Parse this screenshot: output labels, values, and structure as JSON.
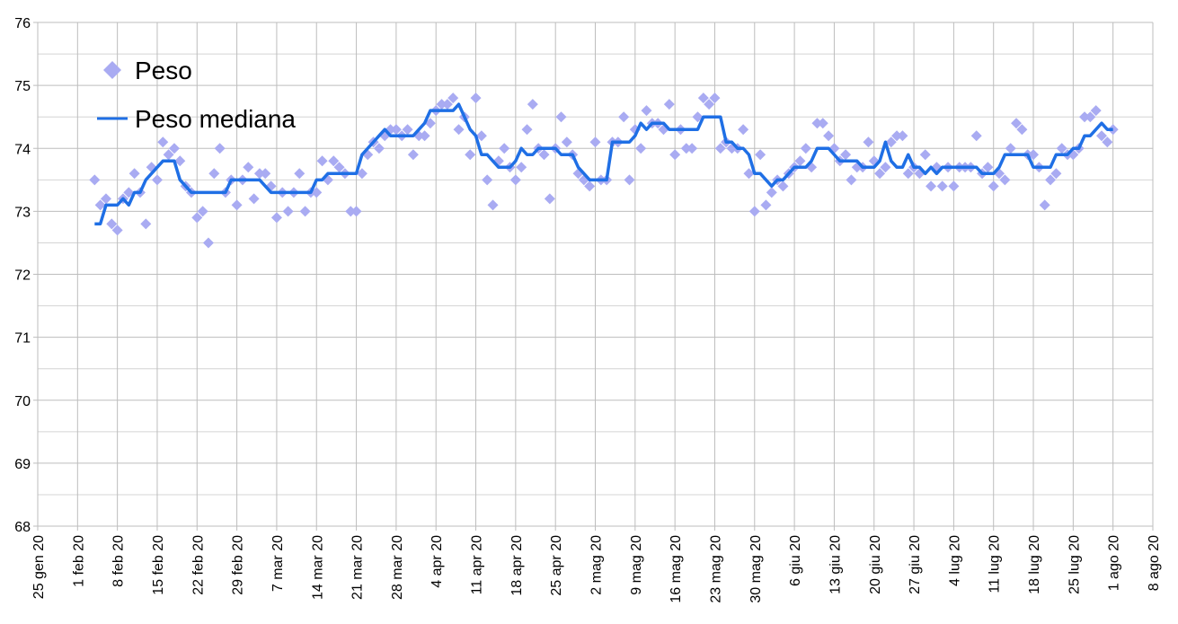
{
  "chart_data": {
    "type": "scatter_line",
    "x": [
      "2020-02-04",
      "2020-02-05",
      "2020-02-06",
      "2020-02-07",
      "2020-02-08",
      "2020-02-09",
      "2020-02-10",
      "2020-02-11",
      "2020-02-12",
      "2020-02-13",
      "2020-02-14",
      "2020-02-15",
      "2020-02-16",
      "2020-02-17",
      "2020-02-18",
      "2020-02-19",
      "2020-02-20",
      "2020-02-21",
      "2020-02-22",
      "2020-02-23",
      "2020-02-24",
      "2020-02-25",
      "2020-02-26",
      "2020-02-27",
      "2020-02-28",
      "2020-02-29",
      "2020-03-01",
      "2020-03-02",
      "2020-03-03",
      "2020-03-04",
      "2020-03-05",
      "2020-03-06",
      "2020-03-07",
      "2020-03-08",
      "2020-03-09",
      "2020-03-10",
      "2020-03-11",
      "2020-03-12",
      "2020-03-13",
      "2020-03-14",
      "2020-03-15",
      "2020-03-16",
      "2020-03-17",
      "2020-03-18",
      "2020-03-19",
      "2020-03-20",
      "2020-03-21",
      "2020-03-22",
      "2020-03-23",
      "2020-03-24",
      "2020-03-25",
      "2020-03-26",
      "2020-03-27",
      "2020-03-28",
      "2020-03-29",
      "2020-03-30",
      "2020-03-31",
      "2020-04-01",
      "2020-04-02",
      "2020-04-03",
      "2020-04-04",
      "2020-04-05",
      "2020-04-06",
      "2020-04-07",
      "2020-04-08",
      "2020-04-09",
      "2020-04-10",
      "2020-04-11",
      "2020-04-12",
      "2020-04-13",
      "2020-04-14",
      "2020-04-15",
      "2020-04-16",
      "2020-04-17",
      "2020-04-18",
      "2020-04-19",
      "2020-04-20",
      "2020-04-21",
      "2020-04-22",
      "2020-04-23",
      "2020-04-24",
      "2020-04-25",
      "2020-04-26",
      "2020-04-27",
      "2020-04-28",
      "2020-04-29",
      "2020-04-30",
      "2020-05-01",
      "2020-05-02",
      "2020-05-03",
      "2020-05-04",
      "2020-05-05",
      "2020-05-06",
      "2020-05-07",
      "2020-05-08",
      "2020-05-09",
      "2020-05-10",
      "2020-05-11",
      "2020-05-12",
      "2020-05-13",
      "2020-05-14",
      "2020-05-15",
      "2020-05-16",
      "2020-05-17",
      "2020-05-18",
      "2020-05-19",
      "2020-05-20",
      "2020-05-21",
      "2020-05-22",
      "2020-05-23",
      "2020-05-24",
      "2020-05-25",
      "2020-05-26",
      "2020-05-27",
      "2020-05-28",
      "2020-05-29",
      "2020-05-30",
      "2020-05-31",
      "2020-06-01",
      "2020-06-02",
      "2020-06-03",
      "2020-06-04",
      "2020-06-05",
      "2020-06-06",
      "2020-06-07",
      "2020-06-08",
      "2020-06-09",
      "2020-06-10",
      "2020-06-11",
      "2020-06-12",
      "2020-06-13",
      "2020-06-14",
      "2020-06-15",
      "2020-06-16",
      "2020-06-17",
      "2020-06-18",
      "2020-06-19",
      "2020-06-20",
      "2020-06-21",
      "2020-06-22",
      "2020-06-23",
      "2020-06-24",
      "2020-06-25",
      "2020-06-26",
      "2020-06-27",
      "2020-06-28",
      "2020-06-29",
      "2020-06-30",
      "2020-07-01",
      "2020-07-02",
      "2020-07-03",
      "2020-07-04",
      "2020-07-05",
      "2020-07-06",
      "2020-07-07",
      "2020-07-08",
      "2020-07-09",
      "2020-07-10",
      "2020-07-11",
      "2020-07-12",
      "2020-07-13",
      "2020-07-14",
      "2020-07-15",
      "2020-07-16",
      "2020-07-17",
      "2020-07-18",
      "2020-07-19",
      "2020-07-20",
      "2020-07-21",
      "2020-07-22",
      "2020-07-23",
      "2020-07-24",
      "2020-07-25",
      "2020-07-26",
      "2020-07-27",
      "2020-07-28",
      "2020-07-29",
      "2020-07-30",
      "2020-07-31",
      "2020-08-01"
    ],
    "series": [
      {
        "name": "Peso",
        "color": "#a9abf2",
        "marker": "diamond",
        "values": [
          73.5,
          73.1,
          73.2,
          72.8,
          72.7,
          73.2,
          73.3,
          73.6,
          73.3,
          72.8,
          73.7,
          73.5,
          74.1,
          73.9,
          74.0,
          73.8,
          73.4,
          73.3,
          72.9,
          73.0,
          72.5,
          73.6,
          74.0,
          73.3,
          73.5,
          73.1,
          73.5,
          73.7,
          73.2,
          73.6,
          73.6,
          73.4,
          72.9,
          73.3,
          73.0,
          73.3,
          73.6,
          73.0,
          73.3,
          73.3,
          73.8,
          73.5,
          73.8,
          73.7,
          73.6,
          73.0,
          73.0,
          73.6,
          73.9,
          74.1,
          74.0,
          74.2,
          74.3,
          74.3,
          74.2,
          74.3,
          73.9,
          74.2,
          74.2,
          74.4,
          74.6,
          74.7,
          74.7,
          74.8,
          74.3,
          74.5,
          73.9,
          74.8,
          74.2,
          73.5,
          73.1,
          73.8,
          74.0,
          73.7,
          73.5,
          73.7,
          74.3,
          74.7,
          74.0,
          73.9,
          73.2,
          74.0,
          74.5,
          74.1,
          73.9,
          73.6,
          73.5,
          73.4,
          74.1,
          73.5,
          73.5,
          74.1,
          74.1,
          74.5,
          73.5,
          74.3,
          74.0,
          74.6,
          74.4,
          74.4,
          74.3,
          74.7,
          73.9,
          74.3,
          74.0,
          74.0,
          74.5,
          74.8,
          74.7,
          74.8,
          74.0,
          74.1,
          74.0,
          74.0,
          74.3,
          73.6,
          73.0,
          73.9,
          73.1,
          73.3,
          73.5,
          73.4,
          73.6,
          73.7,
          73.8,
          74.0,
          73.7,
          74.4,
          74.4,
          74.2,
          74.0,
          73.8,
          73.9,
          73.5,
          73.7,
          73.7,
          74.1,
          73.8,
          73.6,
          73.7,
          74.1,
          74.2,
          74.2,
          73.6,
          73.7,
          73.6,
          73.9,
          73.4,
          73.7,
          73.4,
          73.7,
          73.4,
          73.7,
          73.7,
          73.7,
          74.2,
          73.6,
          73.7,
          73.4,
          73.6,
          73.5,
          74.0,
          74.4,
          74.3,
          73.9,
          73.9,
          73.7,
          73.1,
          73.5,
          73.6,
          74.0,
          73.9,
          73.9,
          74.0,
          74.5,
          74.5,
          74.6,
          74.2,
          74.1,
          74.3
        ]
      },
      {
        "name": "Peso mediana",
        "color": "#1f6fe5",
        "marker": "line",
        "values": [
          72.8,
          72.8,
          73.1,
          73.1,
          73.1,
          73.2,
          73.1,
          73.3,
          73.3,
          73.5,
          73.6,
          73.7,
          73.8,
          73.8,
          73.8,
          73.5,
          73.4,
          73.3,
          73.3,
          73.3,
          73.3,
          73.3,
          73.3,
          73.3,
          73.5,
          73.5,
          73.5,
          73.5,
          73.5,
          73.5,
          73.4,
          73.3,
          73.3,
          73.3,
          73.3,
          73.3,
          73.3,
          73.3,
          73.3,
          73.5,
          73.5,
          73.6,
          73.6,
          73.6,
          73.6,
          73.6,
          73.6,
          73.9,
          74.0,
          74.1,
          74.2,
          74.3,
          74.2,
          74.2,
          74.2,
          74.2,
          74.2,
          74.3,
          74.4,
          74.6,
          74.6,
          74.6,
          74.6,
          74.6,
          74.7,
          74.5,
          74.3,
          74.2,
          73.9,
          73.9,
          73.8,
          73.7,
          73.7,
          73.7,
          73.8,
          74.0,
          73.9,
          73.9,
          74.0,
          74.0,
          74.0,
          74.0,
          73.9,
          73.9,
          73.9,
          73.7,
          73.6,
          73.5,
          73.5,
          73.5,
          73.5,
          74.1,
          74.1,
          74.1,
          74.1,
          74.2,
          74.4,
          74.3,
          74.4,
          74.4,
          74.4,
          74.3,
          74.3,
          74.3,
          74.3,
          74.3,
          74.3,
          74.5,
          74.5,
          74.5,
          74.5,
          74.1,
          74.1,
          74.0,
          74.0,
          73.9,
          73.6,
          73.6,
          73.5,
          73.4,
          73.5,
          73.5,
          73.6,
          73.7,
          73.7,
          73.7,
          73.8,
          74.0,
          74.0,
          74.0,
          73.9,
          73.8,
          73.8,
          73.8,
          73.8,
          73.7,
          73.7,
          73.7,
          73.8,
          74.1,
          73.8,
          73.7,
          73.7,
          73.9,
          73.7,
          73.7,
          73.6,
          73.7,
          73.6,
          73.7,
          73.7,
          73.7,
          73.7,
          73.7,
          73.7,
          73.7,
          73.6,
          73.6,
          73.6,
          73.7,
          73.9,
          73.9,
          73.9,
          73.9,
          73.9,
          73.7,
          73.7,
          73.7,
          73.7,
          73.9,
          73.9,
          73.9,
          74.0,
          74.0,
          74.2,
          74.2,
          74.3,
          74.4,
          74.3,
          74.3
        ]
      }
    ],
    "xlim": [
      "2020-01-25",
      "2020-08-08"
    ],
    "xticks": [
      {
        "value": "2020-01-25",
        "label": "25 gen 20"
      },
      {
        "value": "2020-02-01",
        "label": "1 feb 20"
      },
      {
        "value": "2020-02-08",
        "label": "8 feb 20"
      },
      {
        "value": "2020-02-15",
        "label": "15 feb 20"
      },
      {
        "value": "2020-02-22",
        "label": "22 feb 20"
      },
      {
        "value": "2020-02-29",
        "label": "29 feb 20"
      },
      {
        "value": "2020-03-07",
        "label": "7 mar 20"
      },
      {
        "value": "2020-03-14",
        "label": "14 mar 20"
      },
      {
        "value": "2020-03-21",
        "label": "21 mar 20"
      },
      {
        "value": "2020-03-28",
        "label": "28 mar 20"
      },
      {
        "value": "2020-04-04",
        "label": "4 apr 20"
      },
      {
        "value": "2020-04-11",
        "label": "11 apr 20"
      },
      {
        "value": "2020-04-18",
        "label": "18 apr 20"
      },
      {
        "value": "2020-04-25",
        "label": "25 apr 20"
      },
      {
        "value": "2020-05-02",
        "label": "2 mag 20"
      },
      {
        "value": "2020-05-09",
        "label": "9 mag 20"
      },
      {
        "value": "2020-05-16",
        "label": "16 mag 20"
      },
      {
        "value": "2020-05-23",
        "label": "23 mag 20"
      },
      {
        "value": "2020-05-30",
        "label": "30 mag 20"
      },
      {
        "value": "2020-06-06",
        "label": "6 giu 20"
      },
      {
        "value": "2020-06-13",
        "label": "13 giu 20"
      },
      {
        "value": "2020-06-20",
        "label": "20 giu 20"
      },
      {
        "value": "2020-06-27",
        "label": "27 giu 20"
      },
      {
        "value": "2020-07-04",
        "label": "4 lug 20"
      },
      {
        "value": "2020-07-11",
        "label": "11 lug 20"
      },
      {
        "value": "2020-07-18",
        "label": "18 lug 20"
      },
      {
        "value": "2020-07-25",
        "label": "25 lug 20"
      },
      {
        "value": "2020-08-01",
        "label": "1 ago 20"
      },
      {
        "value": "2020-08-08",
        "label": "8 ago 20"
      }
    ],
    "ylim": [
      68,
      76
    ],
    "yticks": [
      68,
      69,
      70,
      71,
      72,
      73,
      74,
      75,
      76
    ],
    "y_minor_grid": [
      68.5,
      69.5,
      70.5,
      71.5,
      72.5,
      73.5,
      74.5,
      75.5
    ],
    "grid": true,
    "legend": "top-left"
  }
}
